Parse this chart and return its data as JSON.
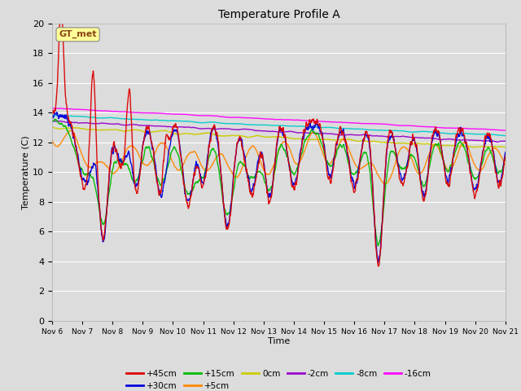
{
  "title": "Temperature Profile A",
  "xlabel": "Time",
  "ylabel": "Temperature (C)",
  "ylim": [
    0,
    20
  ],
  "background_color": "#dcdcdc",
  "plot_bg_color": "#dcdcdc",
  "series": {
    "+45cm": {
      "color": "#dd0000",
      "lw": 1.0
    },
    "+30cm": {
      "color": "#0000dd",
      "lw": 1.0
    },
    "+15cm": {
      "color": "#00bb00",
      "lw": 1.0
    },
    "+5cm": {
      "color": "#ff8800",
      "lw": 1.0
    },
    "0cm": {
      "color": "#cccc00",
      "lw": 1.0
    },
    "-2cm": {
      "color": "#9900cc",
      "lw": 1.0
    },
    "-8cm": {
      "color": "#00cccc",
      "lw": 1.0
    },
    "-16cm": {
      "color": "#ff00ff",
      "lw": 1.0
    }
  },
  "xtick_labels": [
    "Nov 6",
    "Nov 7",
    "Nov 8",
    "Nov 9",
    "Nov 10",
    "Nov 11",
    "Nov 12",
    "Nov 13",
    "Nov 14",
    "Nov 15",
    "Nov 16",
    "Nov 17",
    "Nov 18",
    "Nov 19",
    "Nov 20",
    "Nov 21"
  ],
  "annotation_text": "GT_met",
  "annotation_color": "#8B4513",
  "annotation_bg": "#ffff99",
  "grid_color": "#ffffff",
  "n_points": 2000
}
